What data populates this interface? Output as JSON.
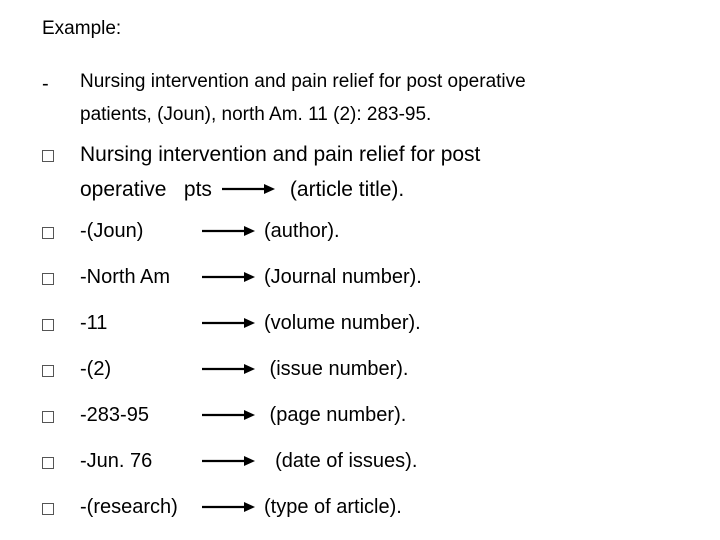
{
  "heading": "Example:",
  "citation_line1": "Nursing intervention and pain relief for post operative",
  "citation_line2": "patients, (Joun), north Am. 11 (2): 283-95.",
  "title_line1": "Nursing intervention and pain relief for post",
  "title_left": "operative   pts",
  "title_right": "(article title).",
  "rows": [
    {
      "left": "-(Joun)",
      "right": "(author)."
    },
    {
      "left": "-North Am",
      "right": "(Journal number)."
    },
    {
      "left": "-11",
      "right": "(volume number)."
    },
    {
      "left": "-(2)",
      "right": " (issue number)."
    },
    {
      "left": "-283-95",
      "right": " (page number)."
    },
    {
      "left": "-Jun. 76",
      "right": "  (date of issues)."
    },
    {
      "left": "-(research)",
      "right": "(type of article)."
    }
  ],
  "arrow_color": "#000000",
  "arrow_stroke": 2.2
}
